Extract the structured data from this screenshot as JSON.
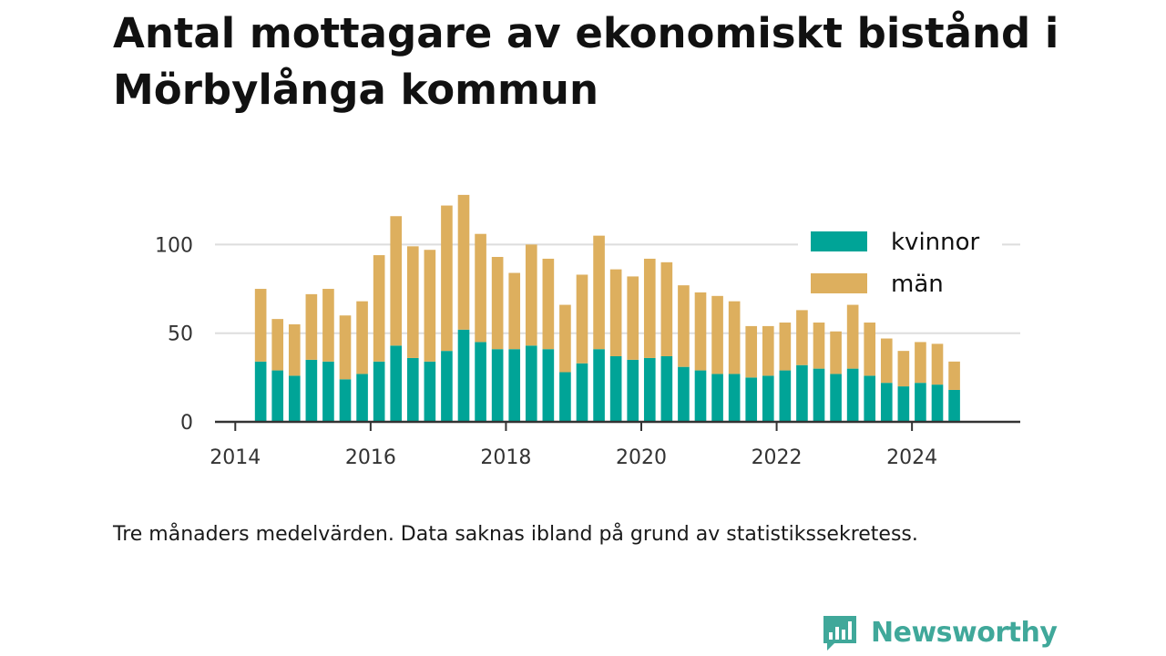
{
  "colors": {
    "women": "#00a497",
    "men": "#ddaf5e",
    "grid": "#dddddd",
    "axis": "#333333",
    "brand": "#40a89a"
  },
  "chart_data": {
    "type": "bar",
    "stacked": true,
    "title": "Antal mottagare av ekonomiskt bistånd i Mörbylånga kommun",
    "subtitle": "",
    "xlabel": "",
    "ylabel": "",
    "x_ticks": [
      "2014",
      "2016",
      "2018",
      "2020",
      "2022",
      "2024"
    ],
    "y_ticks": [
      "0",
      "50",
      "100"
    ],
    "xlim": [
      2013.7,
      2025.6
    ],
    "ylim": [
      0,
      130
    ],
    "grid": true,
    "legend_position": "top-right",
    "x": [
      2014.375,
      2014.625,
      2014.875,
      2015.125,
      2015.375,
      2015.625,
      2015.875,
      2016.125,
      2016.375,
      2016.625,
      2016.875,
      2017.125,
      2017.375,
      2017.625,
      2017.875,
      2018.125,
      2018.375,
      2018.625,
      2018.875,
      2019.125,
      2019.375,
      2019.625,
      2019.875,
      2020.125,
      2020.375,
      2020.625,
      2020.875,
      2021.125,
      2021.375,
      2021.625,
      2021.875,
      2022.125,
      2022.375,
      2022.625,
      2022.875,
      2023.125,
      2023.375,
      2023.625,
      2023.875,
      2024.125,
      2024.375,
      2024.625
    ],
    "series": [
      {
        "name": "kvinnor",
        "values": [
          34,
          29,
          26,
          35,
          34,
          24,
          27,
          34,
          43,
          36,
          34,
          40,
          52,
          45,
          41,
          41,
          43,
          41,
          28,
          33,
          41,
          37,
          35,
          36,
          37,
          31,
          29,
          27,
          27,
          25,
          26,
          29,
          32,
          30,
          27,
          30,
          26,
          22,
          20,
          22,
          21,
          18
        ]
      },
      {
        "name": "män",
        "values": [
          41,
          29,
          29,
          37,
          41,
          36,
          41,
          60,
          73,
          63,
          63,
          82,
          76,
          61,
          52,
          43,
          57,
          51,
          38,
          50,
          64,
          49,
          47,
          56,
          53,
          46,
          44,
          44,
          41,
          29,
          28,
          27,
          31,
          26,
          24,
          36,
          30,
          25,
          20,
          23,
          23,
          16
        ]
      }
    ]
  },
  "caption": "Tre månaders medelvärden. Data saknas ibland på grund av statistikssekretess.",
  "brand": {
    "name": "Newsworthy",
    "icon": "bar-chart-icon"
  }
}
